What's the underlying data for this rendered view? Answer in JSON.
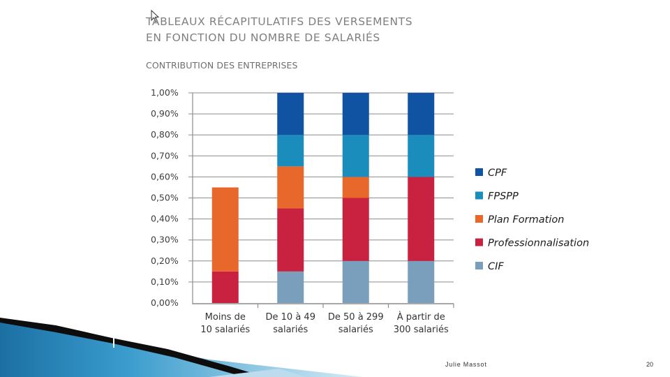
{
  "slide": {
    "title_line1": "TABLEAUX RÉCAPITULATIFS DES VERSEMENTS",
    "title_line2": "EN FONCTION DU NOMBRE DE SALARIÉS",
    "author": "Julie Massot",
    "page_number": "20"
  },
  "chart_data": {
    "type": "bar",
    "stacked": true,
    "title": "CONTRIBUTION DES ENTREPRISES",
    "categories": [
      [
        "Moins de",
        "10 salariés"
      ],
      [
        "De 10 à 49",
        "salariés"
      ],
      [
        "De 50 à 299",
        "salariés"
      ],
      [
        "À partir de",
        "300 salariés"
      ]
    ],
    "series": [
      {
        "name": "CIF",
        "color": "#7a9fbd",
        "values": [
          0,
          0.15,
          0.2,
          0.2
        ]
      },
      {
        "name": "Professionnalisation",
        "color": "#c92241",
        "values": [
          0.15,
          0.3,
          0.3,
          0.4
        ]
      },
      {
        "name": "Plan Formation",
        "color": "#e8672a",
        "values": [
          0.4,
          0.2,
          0.1,
          0
        ]
      },
      {
        "name": "FPSPP",
        "color": "#1a8dbd",
        "values": [
          0,
          0.15,
          0.2,
          0.2
        ]
      },
      {
        "name": "CPF",
        "color": "#1153a3",
        "values": [
          0,
          0.2,
          0.2,
          0.2
        ]
      }
    ],
    "legend_order": [
      "CPF",
      "FPSPP",
      "Plan Formation",
      "Professionnalisation",
      "CIF"
    ],
    "yticks": [
      "0,00%",
      "0,10%",
      "0,20%",
      "0,30%",
      "0,40%",
      "0,50%",
      "0,60%",
      "0,70%",
      "0,80%",
      "0,90%",
      "1,00%"
    ],
    "ylim": [
      0,
      1.0
    ],
    "grid": true,
    "legend_position": "right"
  }
}
